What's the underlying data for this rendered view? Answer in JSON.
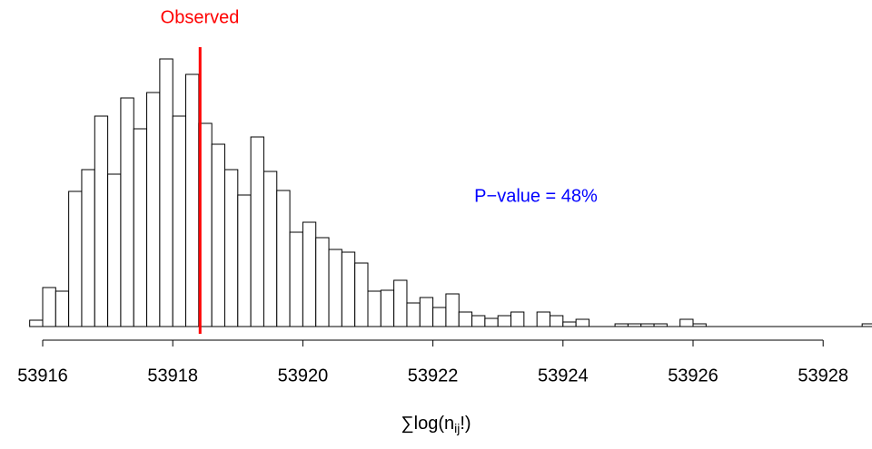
{
  "chart_data": {
    "type": "histogram",
    "bins": [
      53915.8,
      53916.0,
      53916.2,
      53916.4,
      53916.6,
      53916.8,
      53917.0,
      53917.2,
      53917.4,
      53917.6,
      53917.8,
      53918.0,
      53918.2,
      53918.4,
      53918.6,
      53918.8,
      53919.0,
      53919.2,
      53919.4,
      53919.6,
      53919.8,
      53920.0,
      53920.2,
      53920.4,
      53920.6,
      53920.8,
      53921.0,
      53921.2,
      53921.4,
      53921.6,
      53921.8,
      53922.0,
      53922.2,
      53922.4,
      53922.6,
      53922.8,
      53923.0,
      53923.2,
      53923.4,
      53923.6,
      53923.8,
      53924.0,
      53924.2,
      53924.4,
      53924.6,
      53924.8,
      53925.0,
      53925.2,
      53925.4,
      53925.6,
      53925.8,
      53926.0,
      53926.2,
      53926.4,
      53926.6,
      53926.8,
      53927.0,
      53927.2,
      53927.4,
      53927.6,
      53927.8,
      53928.0,
      53928.2,
      53928.4,
      53928.6,
      53928.8
    ],
    "counts": [
      7,
      43,
      39,
      149,
      173,
      232,
      168,
      252,
      218,
      258,
      295,
      232,
      278,
      224,
      201,
      173,
      145,
      209,
      171,
      150,
      104,
      115,
      98,
      85,
      82,
      70,
      39,
      40,
      51,
      26,
      32,
      21,
      36,
      16,
      12,
      9,
      12,
      16,
      0,
      16,
      12,
      5,
      8,
      0,
      0,
      3,
      3,
      3,
      3,
      0,
      8,
      3,
      0,
      0,
      0,
      0,
      0,
      0,
      0,
      0,
      0,
      0,
      0,
      0,
      3
    ],
    "color": "#ffffff",
    "edge_color": "#000000",
    "xlim": [
      53915.8,
      53928.8
    ],
    "xticks": [
      53916,
      53918,
      53920,
      53922,
      53924,
      53926,
      53928
    ],
    "ylim": [
      0,
      295
    ],
    "observed": 53918.42,
    "observed_label": "Observed",
    "observed_color": "#ff0000",
    "annotation": "P−value = 48%",
    "annotation_color": "#0000ff",
    "x_label_parts": [
      "∑log(n",
      "ij",
      "!)"
    ]
  }
}
